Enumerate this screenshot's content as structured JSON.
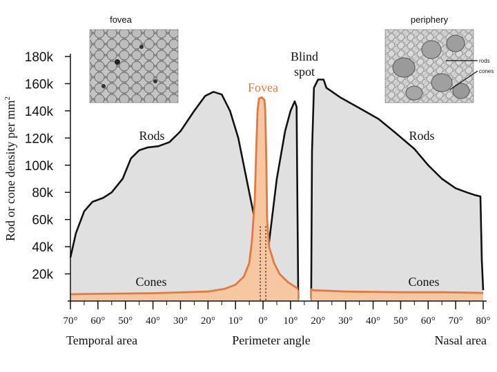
{
  "chart_data": {
    "type": "area",
    "ylabel": "Rod or cone density per mm²",
    "ylabel_main": "Rod or cone density per mm",
    "ylabel_sup": "2",
    "xlabel": "Perimeter angle",
    "x_left_label": "Temporal area",
    "x_right_label": "Nasal area",
    "xlim": [
      -70,
      80
    ],
    "ylim": [
      0,
      180000
    ],
    "y_ticks": [
      20000,
      40000,
      60000,
      80000,
      100000,
      120000,
      140000,
      160000,
      180000
    ],
    "y_tick_labels": [
      "20k",
      "40k",
      "60k",
      "80k",
      "100k",
      "120k",
      "140k",
      "160k",
      "180k"
    ],
    "x_ticks": [
      -70,
      -60,
      -50,
      -40,
      -30,
      -20,
      -10,
      0,
      10,
      20,
      30,
      40,
      50,
      60,
      70,
      80
    ],
    "x_tick_labels": [
      "70°",
      "60°",
      "50°",
      "40°",
      "30°",
      "20°",
      "10°",
      "0°",
      "10°",
      "20°",
      "30°",
      "40°",
      "50°",
      "60°",
      "70°",
      "80°"
    ],
    "blind_spot": [
      13,
      17
    ],
    "series": [
      {
        "name": "Rods",
        "color": "#e0e0e0",
        "stroke": "#111111",
        "segments": [
          [
            [
              -70,
              32000
            ],
            [
              -68,
              50000
            ],
            [
              -65,
              66000
            ],
            [
              -62,
              73000
            ],
            [
              -58,
              76000
            ],
            [
              -55,
              80000
            ],
            [
              -51,
              90000
            ],
            [
              -48,
              105000
            ],
            [
              -45,
              111000
            ],
            [
              -42,
              113000
            ],
            [
              -38,
              114000
            ],
            [
              -34,
              117000
            ],
            [
              -30,
              125000
            ],
            [
              -25,
              140000
            ],
            [
              -21,
              151000
            ],
            [
              -18,
              154000
            ],
            [
              -15,
              152000
            ],
            [
              -12,
              140000
            ],
            [
              -9,
              120000
            ],
            [
              -6,
              90000
            ],
            [
              -3,
              60000
            ],
            [
              -1,
              30000
            ],
            [
              0,
              0
            ],
            [
              2,
              40000
            ],
            [
              5,
              90000
            ],
            [
              8,
              125000
            ],
            [
              10,
              140000
            ],
            [
              11.5,
              147000
            ],
            [
              12.2,
              143000
            ],
            [
              12.5,
              70000
            ],
            [
              12.8,
              2000
            ]
          ],
          [
            [
              17.5,
              2000
            ],
            [
              17.8,
              110000
            ],
            [
              18.5,
              157000
            ],
            [
              20,
              163000
            ],
            [
              22,
              163000
            ],
            [
              23,
              157000
            ],
            [
              28,
              150000
            ],
            [
              35,
              142000
            ],
            [
              42,
              134000
            ],
            [
              48,
              124000
            ],
            [
              55,
              112000
            ],
            [
              60,
              100000
            ],
            [
              65,
              90000
            ],
            [
              70,
              83000
            ],
            [
              74,
              80000
            ],
            [
              77,
              78000
            ],
            [
              79,
              77000
            ],
            [
              79.5,
              30000
            ],
            [
              80,
              8000
            ]
          ]
        ]
      },
      {
        "name": "Cones",
        "color": "#f6c7a0",
        "stroke": "#e07a45",
        "segments": [
          [
            [
              -70,
              5000
            ],
            [
              -60,
              5300
            ],
            [
              -40,
              5800
            ],
            [
              -20,
              7000
            ],
            [
              -14,
              9000
            ],
            [
              -10,
              12000
            ],
            [
              -7,
              18000
            ],
            [
              -5,
              28000
            ],
            [
              -4,
              45000
            ],
            [
              -3,
              75000
            ],
            [
              -2.5,
              110000
            ],
            [
              -2,
              140000
            ],
            [
              -1.5,
              149000
            ],
            [
              -0.5,
              150000
            ],
            [
              0.5,
              148000
            ],
            [
              0.8,
              140000
            ],
            [
              1.2,
              100000
            ],
            [
              1.5,
              60000
            ],
            [
              2.2,
              40000
            ],
            [
              4,
              28000
            ],
            [
              6,
              20000
            ],
            [
              9,
              14000
            ],
            [
              12,
              10000
            ],
            [
              12.7,
              9000
            ]
          ],
          [
            [
              17.3,
              9000
            ],
            [
              18,
              8000
            ],
            [
              30,
              7000
            ],
            [
              50,
              6500
            ],
            [
              65,
              6500
            ],
            [
              80,
              6000
            ]
          ]
        ]
      }
    ],
    "annotations": [
      "Rods",
      "Rods",
      "Cones",
      "Cones",
      "Fovea",
      "Blind",
      "spot"
    ],
    "inset_fovea_title": "fovea",
    "inset_periphery_title": "periphery",
    "inset_periphery_labels": [
      "rods",
      "cones"
    ]
  }
}
